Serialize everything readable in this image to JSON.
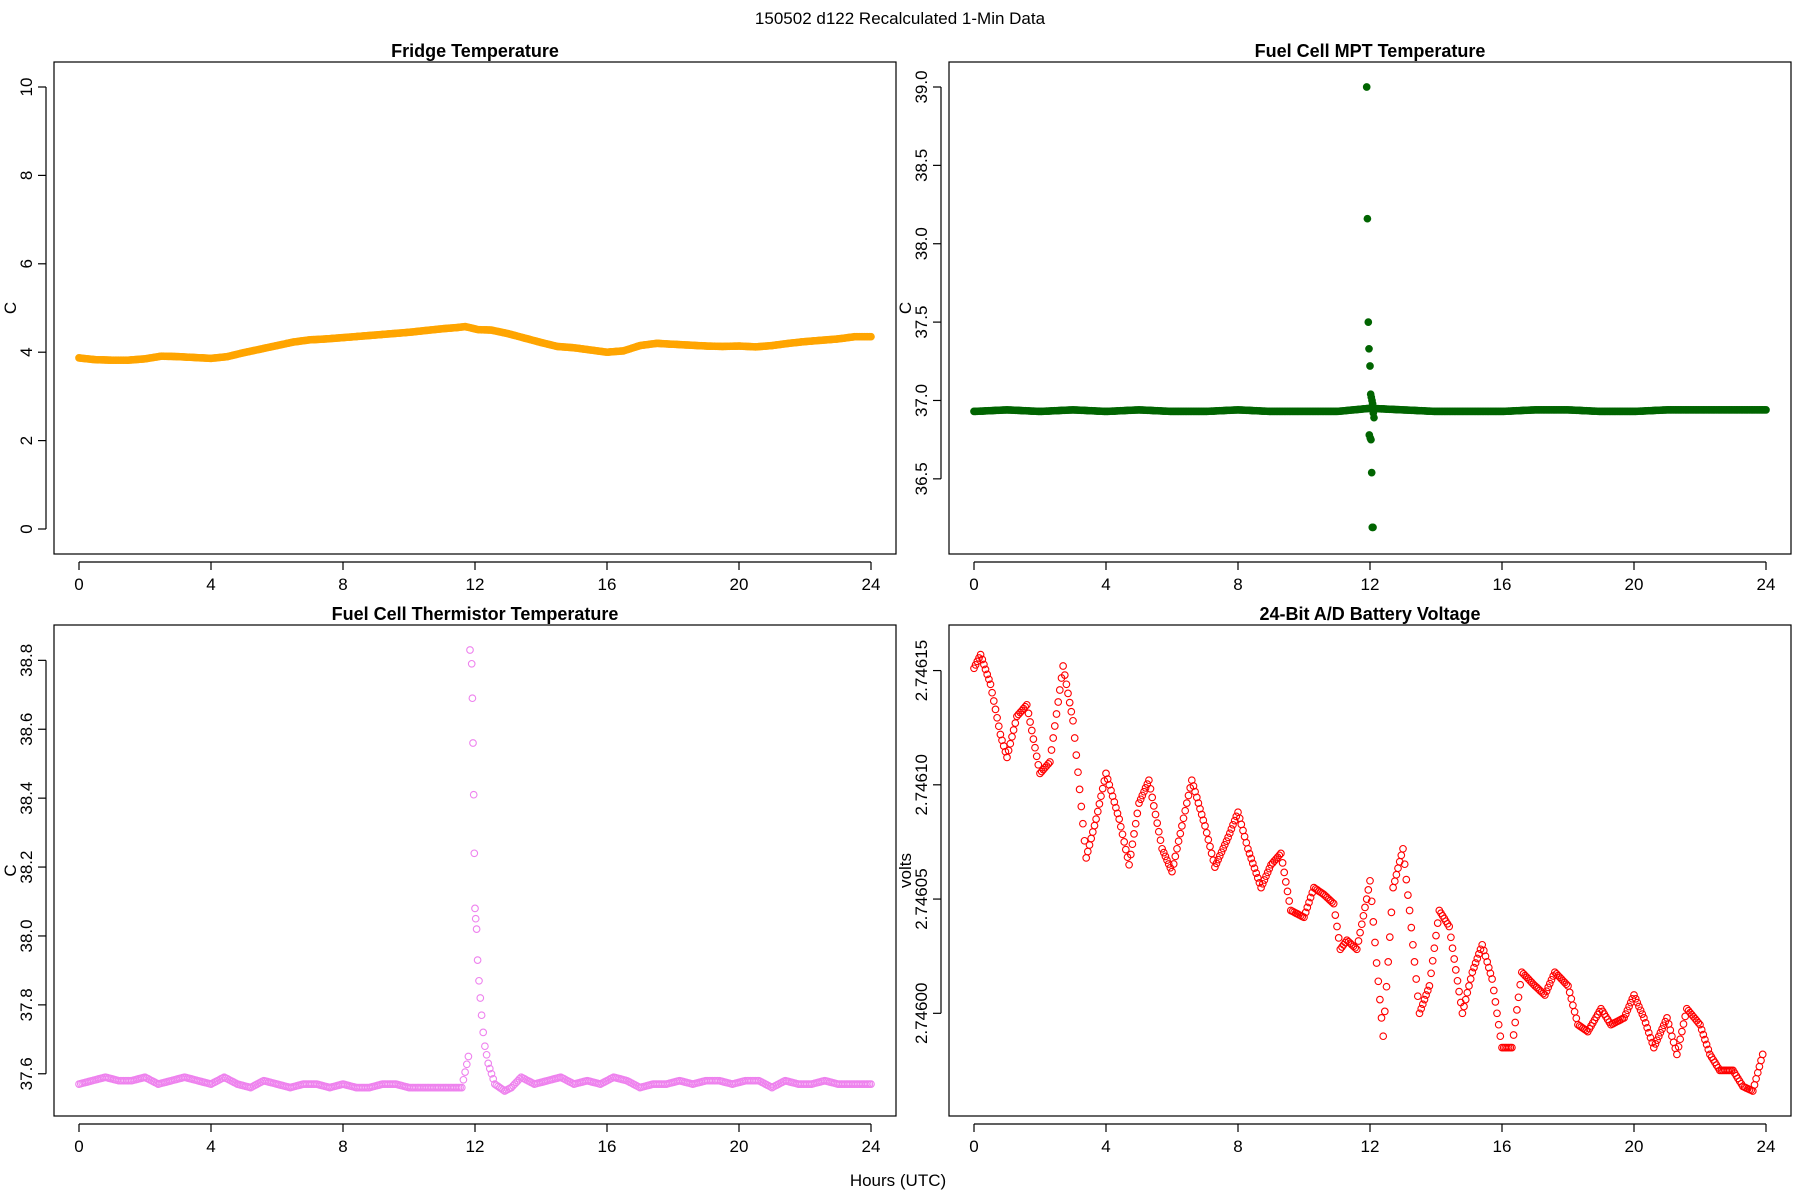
{
  "figure": {
    "title": "150502   d122   Recalculated 1-Min Data",
    "xlabel": "Hours (UTC)"
  },
  "chart_data": [
    {
      "type": "scatter",
      "title": "Fridge Temperature",
      "xlabel": "Hours (UTC)",
      "ylabel": "C",
      "xlim": [
        0,
        24
      ],
      "ylim": [
        0,
        10
      ],
      "xticks": [
        0,
        4,
        8,
        12,
        16,
        20,
        24
      ],
      "yticks": [
        0,
        2,
        4,
        6,
        8,
        10
      ],
      "ytick_labels": [
        "0",
        "2",
        "4",
        "6",
        "8",
        "10"
      ],
      "color": "#FFA500",
      "filled": true,
      "series": [
        {
          "name": "fridge_temp",
          "x": [
            0,
            0.5,
            1,
            1.5,
            2,
            2.5,
            3,
            3.5,
            4,
            4.5,
            5,
            5.5,
            6,
            6.5,
            7,
            7.5,
            8,
            8.5,
            9,
            9.5,
            10,
            10.5,
            11,
            11.5,
            11.7,
            12.1,
            12.5,
            13,
            13.5,
            14,
            14.5,
            15,
            15.5,
            16,
            16.5,
            17,
            17.5,
            18,
            18.5,
            19,
            19.5,
            20,
            20.5,
            21,
            21.5,
            22,
            22.5,
            23,
            23.5,
            24
          ],
          "y": [
            3.87,
            3.83,
            3.82,
            3.82,
            3.85,
            3.91,
            3.9,
            3.88,
            3.86,
            3.9,
            3.99,
            4.07,
            4.15,
            4.23,
            4.28,
            4.3,
            4.33,
            4.36,
            4.39,
            4.42,
            4.45,
            4.49,
            4.53,
            4.56,
            4.58,
            4.51,
            4.5,
            4.42,
            4.32,
            4.22,
            4.13,
            4.1,
            4.05,
            4.0,
            4.03,
            4.15,
            4.2,
            4.18,
            4.16,
            4.14,
            4.13,
            4.14,
            4.12,
            4.15,
            4.2,
            4.24,
            4.27,
            4.3,
            4.35,
            4.35
          ]
        }
      ]
    },
    {
      "type": "scatter",
      "title": "Fuel Cell MPT Temperature",
      "xlabel": "Hours (UTC)",
      "ylabel": "C",
      "xlim": [
        0,
        24
      ],
      "ylim": [
        36.18,
        39.0
      ],
      "xticks": [
        0,
        4,
        8,
        12,
        16,
        20,
        24
      ],
      "yticks": [
        36.5,
        37.0,
        37.5,
        38.0,
        38.5,
        39.0
      ],
      "ytick_labels": [
        "36.5",
        "37.0",
        "37.5",
        "38.0",
        "38.5",
        "39.0"
      ],
      "color": "#006400",
      "filled": true,
      "series": [
        {
          "name": "baseline",
          "x": [
            0,
            1,
            2,
            3,
            4,
            5,
            6,
            7,
            8,
            9,
            10,
            11,
            12,
            13,
            14,
            15,
            16,
            17,
            18,
            19,
            20,
            21,
            22,
            23,
            24
          ],
          "y": [
            36.93,
            36.94,
            36.93,
            36.94,
            36.93,
            36.94,
            36.93,
            36.93,
            36.94,
            36.93,
            36.93,
            36.93,
            36.95,
            36.94,
            36.93,
            36.93,
            36.93,
            36.94,
            36.94,
            36.93,
            36.93,
            36.94,
            36.94,
            36.94,
            36.94
          ]
        },
        {
          "name": "outliers",
          "x": [
            11.9,
            11.92,
            11.95,
            11.97,
            12.0,
            12.02,
            12.04,
            12.06,
            12.08,
            12.1,
            12.12,
            11.98,
            12.01,
            12.03,
            12.05,
            12.07,
            12.09
          ],
          "y": [
            39.0,
            38.16,
            37.5,
            37.33,
            37.22,
            37.04,
            37.02,
            37.0,
            36.98,
            36.92,
            36.89,
            36.78,
            36.76,
            36.75,
            36.54,
            36.19,
            36.19
          ]
        }
      ]
    },
    {
      "type": "scatter",
      "title": "Fuel Cell Thermistor Temperature",
      "xlabel": "Hours (UTC)",
      "ylabel": "C",
      "xlim": [
        0,
        24
      ],
      "ylim": [
        37.55,
        38.83
      ],
      "xticks": [
        0,
        4,
        8,
        12,
        16,
        20,
        24
      ],
      "yticks": [
        37.6,
        37.8,
        38.0,
        38.2,
        38.4,
        38.6,
        38.8
      ],
      "ytick_labels": [
        "37.6",
        "37.8",
        "38.0",
        "38.2",
        "38.4",
        "38.6",
        "38.8"
      ],
      "color": "#EE82EE",
      "filled": false,
      "series": [
        {
          "name": "thermistor_temp",
          "x": [
            0,
            0.4,
            0.8,
            1.2,
            1.6,
            2.0,
            2.4,
            2.8,
            3.2,
            3.6,
            4.0,
            4.4,
            4.8,
            5.2,
            5.6,
            6.0,
            6.4,
            6.8,
            7.2,
            7.6,
            8.0,
            8.4,
            8.8,
            9.2,
            9.6,
            10.0,
            10.4,
            10.8,
            11.2,
            11.6,
            11.8,
            11.85,
            11.9,
            11.92,
            11.94,
            11.96,
            11.98,
            12.0,
            12.02,
            12.05,
            12.08,
            12.12,
            12.16,
            12.2,
            12.25,
            12.3,
            12.4,
            12.5,
            12.6,
            12.75,
            12.9,
            13.1,
            13.4,
            13.8,
            14.2,
            14.6,
            15.0,
            15.4,
            15.8,
            16.2,
            16.6,
            17.0,
            17.4,
            17.8,
            18.2,
            18.6,
            19.0,
            19.4,
            19.8,
            20.2,
            20.6,
            21.0,
            21.4,
            21.8,
            22.2,
            22.6,
            23.0,
            23.4,
            23.8,
            24.0
          ],
          "y": [
            37.57,
            37.58,
            37.59,
            37.58,
            37.58,
            37.59,
            37.57,
            37.58,
            37.59,
            37.58,
            37.57,
            37.59,
            37.57,
            37.56,
            37.58,
            37.57,
            37.56,
            37.57,
            37.57,
            37.56,
            37.57,
            37.56,
            37.56,
            37.57,
            37.57,
            37.56,
            37.56,
            37.56,
            37.56,
            37.56,
            37.65,
            38.83,
            38.79,
            38.69,
            38.56,
            38.41,
            38.24,
            38.08,
            38.05,
            38.02,
            37.93,
            37.87,
            37.82,
            37.77,
            37.72,
            37.68,
            37.63,
            37.6,
            37.57,
            37.56,
            37.55,
            37.56,
            37.59,
            37.57,
            37.58,
            37.59,
            37.57,
            37.58,
            37.57,
            37.59,
            37.58,
            37.56,
            37.57,
            37.57,
            37.58,
            37.57,
            37.58,
            37.58,
            37.57,
            37.58,
            37.58,
            37.56,
            37.58,
            37.57,
            37.57,
            37.58,
            37.57,
            37.57,
            37.57,
            37.57
          ]
        }
      ]
    },
    {
      "type": "scatter",
      "title": "24-Bit A/D Battery Voltage",
      "xlabel": "Hours (UTC)",
      "ylabel": "volts",
      "xlim": [
        0,
        24
      ],
      "ylim": [
        2.745966,
        2.746159
      ],
      "xticks": [
        0,
        4,
        8,
        12,
        16,
        20,
        24
      ],
      "yticks": [
        2.746,
        2.74605,
        2.7461,
        2.74615
      ],
      "ytick_labels": [
        "2.74600",
        "2.74605",
        "2.74610",
        "2.74615"
      ],
      "color": "#FF0000",
      "filled": false,
      "series": [
        {
          "name": "battery_voltage",
          "x": [
            0.0,
            0.2,
            0.5,
            0.8,
            1.0,
            1.3,
            1.6,
            2.0,
            2.3,
            2.7,
            3.0,
            3.4,
            3.7,
            4.0,
            4.4,
            4.7,
            5.0,
            5.3,
            5.7,
            6.0,
            6.3,
            6.6,
            7.0,
            7.3,
            7.7,
            8.0,
            8.3,
            8.7,
            9.0,
            9.3,
            9.6,
            10.0,
            10.3,
            10.6,
            10.9,
            11.1,
            11.3,
            11.6,
            11.9,
            12.0,
            12.2,
            12.4,
            12.7,
            13.0,
            13.2,
            13.5,
            13.8,
            14.1,
            14.4,
            14.8,
            15.1,
            15.4,
            15.7,
            16.0,
            16.3,
            16.6,
            17.0,
            17.3,
            17.6,
            18.0,
            18.3,
            18.6,
            19.0,
            19.3,
            19.7,
            20.0,
            20.3,
            20.6,
            21.0,
            21.3,
            21.6,
            22.0,
            22.3,
            22.6,
            23.0,
            23.3,
            23.6,
            23.9
          ],
          "y": [
            2.746151,
            2.746157,
            2.746144,
            2.746122,
            2.746112,
            2.74613,
            2.746135,
            2.746105,
            2.74611,
            2.746152,
            2.746128,
            2.746068,
            2.746085,
            2.746105,
            2.746085,
            2.746065,
            2.746092,
            2.746102,
            2.746072,
            2.746062,
            2.746082,
            2.746102,
            2.746082,
            2.746064,
            2.746077,
            2.746088,
            2.746072,
            2.746055,
            2.746065,
            2.74607,
            2.746045,
            2.746042,
            2.746055,
            2.746052,
            2.746048,
            2.746028,
            2.746032,
            2.746028,
            2.74605,
            2.746058,
            2.746022,
            2.74599,
            2.746055,
            2.746072,
            2.746045,
            2.746,
            2.746012,
            2.746045,
            2.746038,
            2.746,
            2.746018,
            2.74603,
            2.746015,
            2.745985,
            2.745985,
            2.746018,
            2.746012,
            2.746008,
            2.746018,
            2.746012,
            2.745995,
            2.745992,
            2.746002,
            2.745995,
            2.745998,
            2.746008,
            2.745998,
            2.745985,
            2.745998,
            2.745982,
            2.746002,
            2.745995,
            2.745982,
            2.745975,
            2.745975,
            2.745968,
            2.745966,
            2.745982
          ]
        }
      ]
    }
  ]
}
